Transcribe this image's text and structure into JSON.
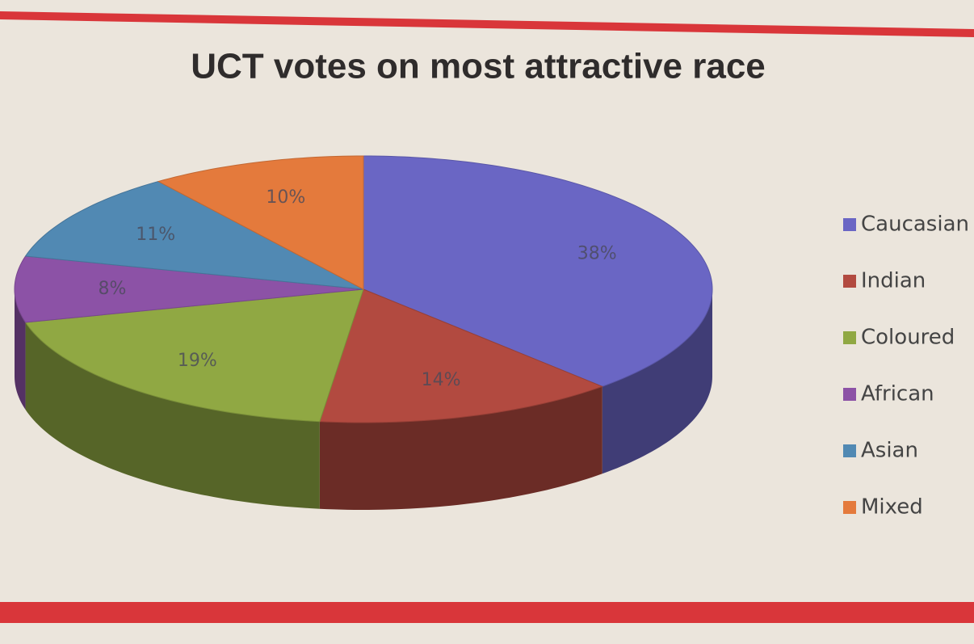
{
  "chart_data": {
    "type": "pie3d",
    "title": "UCT votes on most attractive race",
    "categories": [
      "Caucasian",
      "Indian",
      "Coloured",
      "African",
      "Asian",
      "Mixed"
    ],
    "values": [
      38,
      14,
      19,
      8,
      11,
      10
    ],
    "value_labels": [
      "38%",
      "14%",
      "19%",
      "8%",
      "11%",
      "10%"
    ],
    "colors": [
      "#6a66c4",
      "#b24a40",
      "#90a843",
      "#8c52a6",
      "#5189b3",
      "#e47a3c"
    ],
    "legend": "right"
  }
}
